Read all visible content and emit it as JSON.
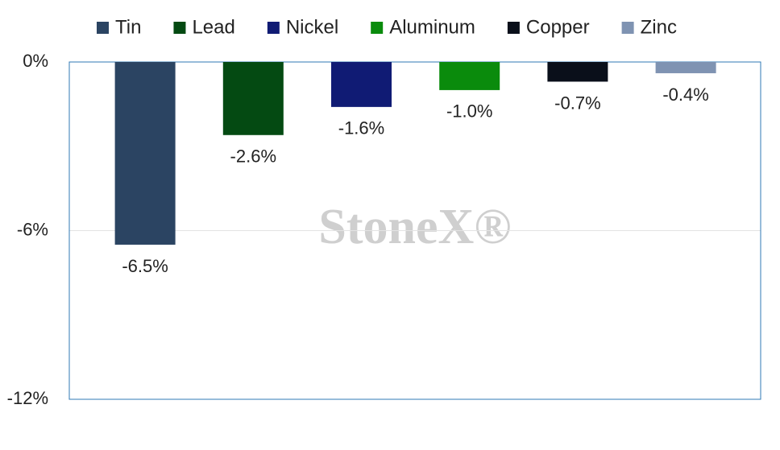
{
  "chart_data": {
    "type": "bar",
    "watermark": "StoneX®",
    "series": [
      {
        "name": "Tin",
        "color": "#2b4462",
        "values": [
          -6.5
        ],
        "value_labels": [
          "-6.5%"
        ]
      },
      {
        "name": "Lead",
        "color": "#044a12",
        "values": [
          -2.6
        ],
        "value_labels": [
          "-2.6%"
        ]
      },
      {
        "name": "Nickel",
        "color": "#101b74",
        "values": [
          -1.6
        ],
        "value_labels": [
          "-1.6%"
        ]
      },
      {
        "name": "Aluminum",
        "color": "#0a8b0c",
        "values": [
          -1.0
        ],
        "value_labels": [
          "-1.0%"
        ]
      },
      {
        "name": "Copper",
        "color": "#0a0f1a",
        "values": [
          -0.7
        ],
        "value_labels": [
          "-0.7%"
        ]
      },
      {
        "name": "Zinc",
        "color": "#7f93b2",
        "values": [
          -0.4
        ],
        "value_labels": [
          "-0.4%"
        ]
      }
    ],
    "ylim": [
      -12,
      0
    ],
    "yticks": [
      {
        "value": 0,
        "label": "0%"
      },
      {
        "value": -6,
        "label": "-6%"
      },
      {
        "value": -12,
        "label": "-12%"
      }
    ],
    "grid": true,
    "legend": "top"
  }
}
